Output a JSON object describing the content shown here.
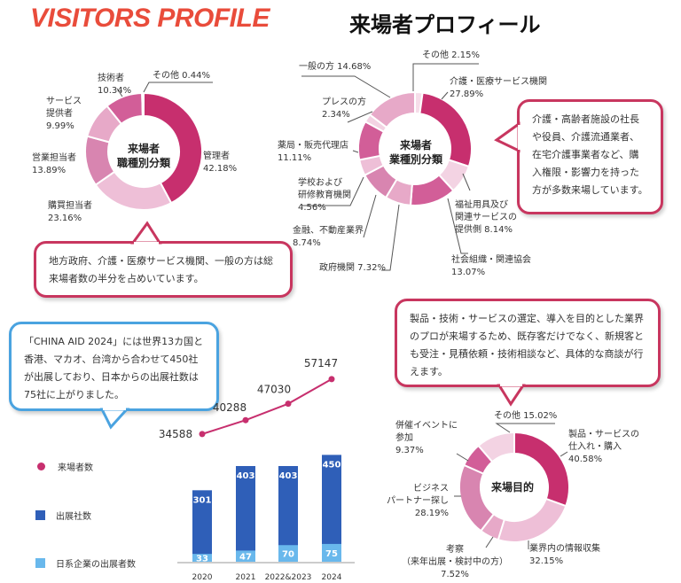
{
  "header": {
    "title_en": "VISITORS PROFILE",
    "title_jp": "来場者プロフィール"
  },
  "colors": {
    "accent_red": "#e94c3b",
    "magenta": "#c72f6e",
    "bar_dark": "#2f5fb8",
    "bar_light": "#69b8ec",
    "bubble_red": "#c8365f",
    "bubble_blue": "#4aa3e0"
  },
  "bubbles": {
    "job_note": "地方政府、介護・医療サービス機関、一般の方は総来場者数の半分を占めいています。",
    "industry_note": "介護・高齢者施設の社長や役員、介護流通業者、在宅介護事業者など、購入権限・影響力を持った方が多数来場しています。",
    "exhibitor_note": "「CHINA AID 2024」には世界13カ国と香港、マカオ、台湾から合わせて450社が出展しており、日本からの出展社数は75社に上がりました。",
    "purpose_note": "製品・技術・サービスの選定、導入を目的とした業界のプロが来場するため、既存客だけでなく、新規客とも受注・見積依頼・技術相談など、具体的な商談が行えます。"
  },
  "chart_data": [
    {
      "type": "pie",
      "title_lines": [
        "来場者",
        "職種別分類"
      ],
      "slices": [
        {
          "label_lines": [
            "管理者",
            "42.18%"
          ],
          "value": 42.18,
          "color": "#c72f6e"
        },
        {
          "label_lines": [
            "購買担当者",
            "23.16%"
          ],
          "value": 23.16,
          "color": "#eebfd7"
        },
        {
          "label_lines": [
            "営業担当者",
            "13.89%"
          ],
          "value": 13.89,
          "color": "#d885b0"
        },
        {
          "label_lines": [
            "サービス",
            "提供者",
            "9.99%"
          ],
          "value": 9.99,
          "color": "#e7a9c8"
        },
        {
          "label_lines": [
            "技術者",
            "10.34%"
          ],
          "value": 10.34,
          "color": "#d25e98"
        },
        {
          "label_lines": [
            "その他  0.44%"
          ],
          "value": 0.44,
          "color": "#f6dde9"
        }
      ]
    },
    {
      "type": "pie",
      "title_lines": [
        "来場者",
        "業種別分類"
      ],
      "slices": [
        {
          "label_lines": [
            "その他  2.15%"
          ],
          "value": 2.15,
          "color": "#f6dde9"
        },
        {
          "label_lines": [
            "介護・医療サービス機関",
            "27.89%"
          ],
          "value": 27.89,
          "color": "#c72f6e"
        },
        {
          "label_lines": [
            "福祉用具及び",
            "関連サービスの",
            "提供側  8.14%"
          ],
          "value": 8.14,
          "color": "#f3d3e3"
        },
        {
          "label_lines": [
            "社会組織・関連協会",
            "13.07%"
          ],
          "value": 13.07,
          "color": "#d25e98"
        },
        {
          "label_lines": [
            "政府機関  7.32%"
          ],
          "value": 7.32,
          "color": "#e7a9c8"
        },
        {
          "label_lines": [
            "金融、不動産業界",
            "8.74%"
          ],
          "value": 8.74,
          "color": "#d885b0"
        },
        {
          "label_lines": [
            "学校および",
            "研修教育機関",
            "4.56%"
          ],
          "value": 4.56,
          "color": "#eebfd7"
        },
        {
          "label_lines": [
            "薬局・販売代理店",
            "11.11%"
          ],
          "value": 11.11,
          "color": "#d25e98"
        },
        {
          "label_lines": [
            "プレスの方",
            "2.34%"
          ],
          "value": 2.34,
          "color": "#f3d3e3"
        },
        {
          "label_lines": [
            "一般の方  14.68%"
          ],
          "value": 14.68,
          "color": "#e7a9c8"
        }
      ]
    },
    {
      "type": "pie",
      "title_lines": [
        "来場目的"
      ],
      "slices": [
        {
          "label_lines": [
            "製品・サービスの",
            "仕入れ・購入",
            "40.58%"
          ],
          "value": 40.58,
          "color": "#c72f6e"
        },
        {
          "label_lines": [
            "業界内の情報収集",
            "32.15%"
          ],
          "value": 32.15,
          "color": "#eebfd7"
        },
        {
          "label_lines": [
            "考察",
            "（来年出展・検討中の方）",
            "7.52%"
          ],
          "value": 7.52,
          "color": "#e7a9c8"
        },
        {
          "label_lines": [
            "ビジネス",
            "パートナー探し",
            "28.19%"
          ],
          "value": 28.19,
          "color": "#d885b0"
        },
        {
          "label_lines": [
            "併催イベントに",
            "参加",
            "9.37%"
          ],
          "value": 9.37,
          "color": "#d25e98"
        },
        {
          "label_lines": [
            "その他  15.02%"
          ],
          "value": 15.02,
          "color": "#f3d3e3"
        }
      ]
    },
    {
      "type": "bar",
      "categories": [
        "2020",
        "2021",
        "2022&2023",
        "2024"
      ],
      "series": [
        {
          "name": "来場者数",
          "kind": "line",
          "values": [
            34588,
            40288,
            47030,
            57147
          ],
          "color": "#c72f6e"
        },
        {
          "name": "出展社数",
          "kind": "bar",
          "values": [
            301,
            403,
            403,
            450
          ],
          "color": "#2f5fb8"
        },
        {
          "name": "日系企業の出展者数",
          "kind": "bar",
          "values": [
            33,
            47,
            70,
            75
          ],
          "color": "#69b8ec"
        }
      ],
      "bar_ylim": [
        0,
        500
      ],
      "line_ylim": [
        20000,
        60000
      ]
    }
  ]
}
